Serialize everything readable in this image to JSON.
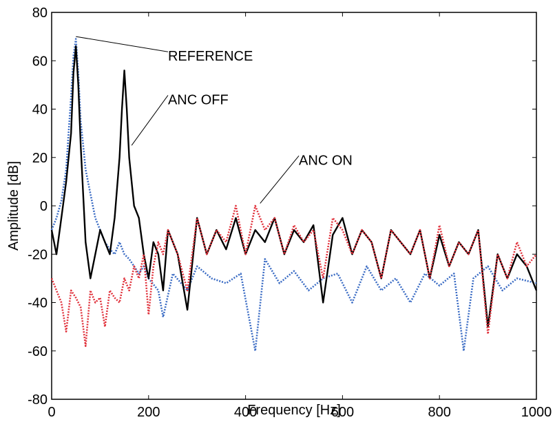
{
  "chart_data": {
    "type": "line",
    "title": "",
    "xlabel": "Frequency [Hz]",
    "ylabel": "Amplitude [dB]",
    "xlim": [
      0,
      1000
    ],
    "ylim": [
      -80,
      80
    ],
    "xticks": [
      0,
      200,
      400,
      600,
      800,
      1000
    ],
    "yticks": [
      -80,
      -60,
      -40,
      -20,
      0,
      20,
      40,
      60,
      80
    ],
    "grid": false,
    "colors": {
      "reference": "#3b6cc4",
      "anc_off": "#000000",
      "anc_on": "#e0303a"
    },
    "series": [
      {
        "name": "REFERENCE",
        "style": "dotted",
        "x": [
          0,
          10,
          20,
          30,
          35,
          40,
          45,
          50,
          55,
          60,
          65,
          70,
          80,
          90,
          100,
          110,
          120,
          130,
          140,
          150,
          160,
          170,
          180,
          190,
          200,
          220,
          230,
          250,
          280,
          300,
          330,
          360,
          390,
          420,
          440,
          470,
          500,
          530,
          560,
          590,
          620,
          650,
          680,
          710,
          740,
          770,
          800,
          830,
          850,
          870,
          900,
          930,
          960,
          1000
        ],
        "y": [
          -10,
          -5,
          2,
          15,
          30,
          45,
          62,
          69,
          55,
          35,
          25,
          15,
          5,
          -5,
          -10,
          -15,
          -18,
          -20,
          -15,
          -20,
          -22,
          -25,
          -28,
          -25,
          -30,
          -35,
          -46,
          -28,
          -35,
          -25,
          -30,
          -32,
          -28,
          -60,
          -22,
          -32,
          -27,
          -35,
          -30,
          -28,
          -40,
          -25,
          -35,
          -30,
          -40,
          -28,
          -33,
          -28,
          -60,
          -30,
          -25,
          -35,
          -30,
          -32
        ]
      },
      {
        "name": "ANC OFF",
        "style": "solid",
        "x": [
          0,
          10,
          20,
          30,
          40,
          45,
          50,
          55,
          60,
          70,
          80,
          90,
          100,
          110,
          120,
          130,
          140,
          145,
          150,
          155,
          160,
          170,
          180,
          190,
          200,
          210,
          220,
          230,
          240,
          260,
          280,
          300,
          320,
          340,
          360,
          380,
          400,
          420,
          440,
          460,
          480,
          500,
          520,
          540,
          560,
          580,
          600,
          620,
          640,
          660,
          680,
          700,
          720,
          740,
          760,
          780,
          800,
          820,
          840,
          860,
          880,
          900,
          920,
          940,
          960,
          980,
          1000
        ],
        "y": [
          -10,
          -20,
          -5,
          10,
          30,
          55,
          66,
          50,
          25,
          -15,
          -30,
          -20,
          -10,
          -15,
          -20,
          -5,
          20,
          40,
          56,
          40,
          20,
          0,
          -5,
          -20,
          -30,
          -15,
          -20,
          -35,
          -10,
          -20,
          -43,
          -5,
          -20,
          -10,
          -18,
          -5,
          -20,
          -10,
          -15,
          -5,
          -20,
          -10,
          -15,
          -8,
          -40,
          -12,
          -5,
          -20,
          -10,
          -15,
          -30,
          -10,
          -15,
          -20,
          -10,
          -30,
          -12,
          -25,
          -15,
          -20,
          -10,
          -50,
          -20,
          -30,
          -20,
          -25,
          -35
        ]
      },
      {
        "name": "ANC ON",
        "style": "dotted",
        "x": [
          0,
          10,
          20,
          30,
          40,
          50,
          60,
          70,
          80,
          90,
          100,
          110,
          120,
          130,
          140,
          150,
          160,
          170,
          180,
          190,
          200,
          210,
          220,
          230,
          240,
          260,
          280,
          300,
          320,
          340,
          360,
          380,
          400,
          420,
          440,
          460,
          480,
          500,
          520,
          540,
          560,
          580,
          600,
          620,
          640,
          660,
          680,
          700,
          720,
          740,
          760,
          780,
          800,
          820,
          840,
          860,
          880,
          900,
          920,
          940,
          960,
          980,
          1000
        ],
        "y": [
          -30,
          -35,
          -40,
          -52,
          -35,
          -38,
          -42,
          -58,
          -35,
          -40,
          -38,
          -50,
          -35,
          -38,
          -40,
          -30,
          -35,
          -25,
          -30,
          -20,
          -45,
          -25,
          -15,
          -20,
          -10,
          -20,
          -35,
          -5,
          -20,
          -10,
          -15,
          0,
          -20,
          0,
          -10,
          -5,
          -20,
          -8,
          -15,
          -10,
          -30,
          -5,
          -10,
          -20,
          -10,
          -15,
          -30,
          -10,
          -15,
          -20,
          -10,
          -30,
          -8,
          -25,
          -15,
          -20,
          -10,
          -53,
          -20,
          -30,
          -15,
          -25,
          -20
        ]
      }
    ],
    "annotations": [
      {
        "text": "REFERENCE",
        "x": 240,
        "y": 62,
        "points_to": [
          50,
          70
        ]
      },
      {
        "text": "ANC OFF",
        "x": 240,
        "y": 44,
        "points_to": [
          165,
          25
        ]
      },
      {
        "text": "ANC ON",
        "x": 510,
        "y": 19,
        "points_to": [
          430,
          1
        ]
      }
    ]
  }
}
